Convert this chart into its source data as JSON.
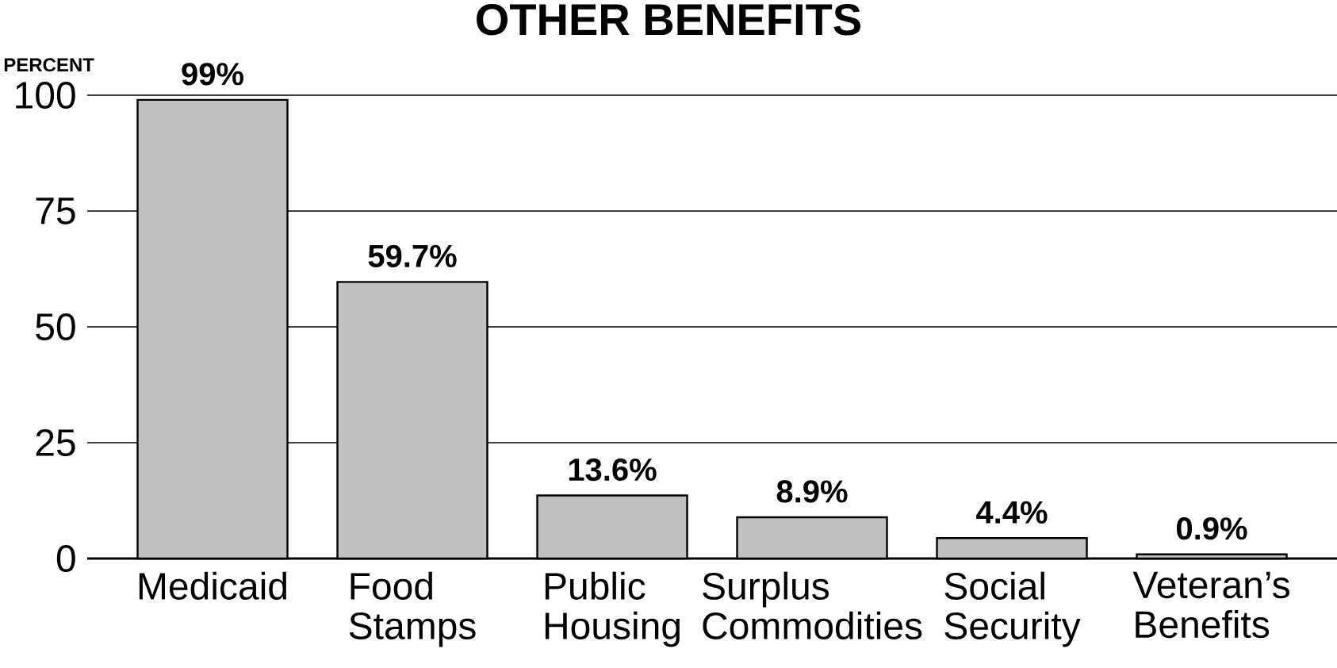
{
  "chart_data": {
    "type": "bar",
    "title": "OTHER BENEFITS",
    "ylabel": "PERCENT",
    "categories": [
      "Medicaid",
      "Food Stamps",
      "Public Housing",
      "Surplus Commodities",
      "Social Security",
      "Veteran’s Benefits"
    ],
    "values": [
      99,
      59.7,
      13.6,
      8.9,
      4.4,
      0.9
    ],
    "value_labels": [
      "99%",
      "59.7%",
      "13.6%",
      "8.9%",
      "4.4%",
      "0.9%"
    ],
    "color": "#c0c0c0",
    "ylim": [
      0,
      100
    ],
    "yticks": [
      0,
      25,
      50,
      75,
      100
    ],
    "grid": "y"
  }
}
